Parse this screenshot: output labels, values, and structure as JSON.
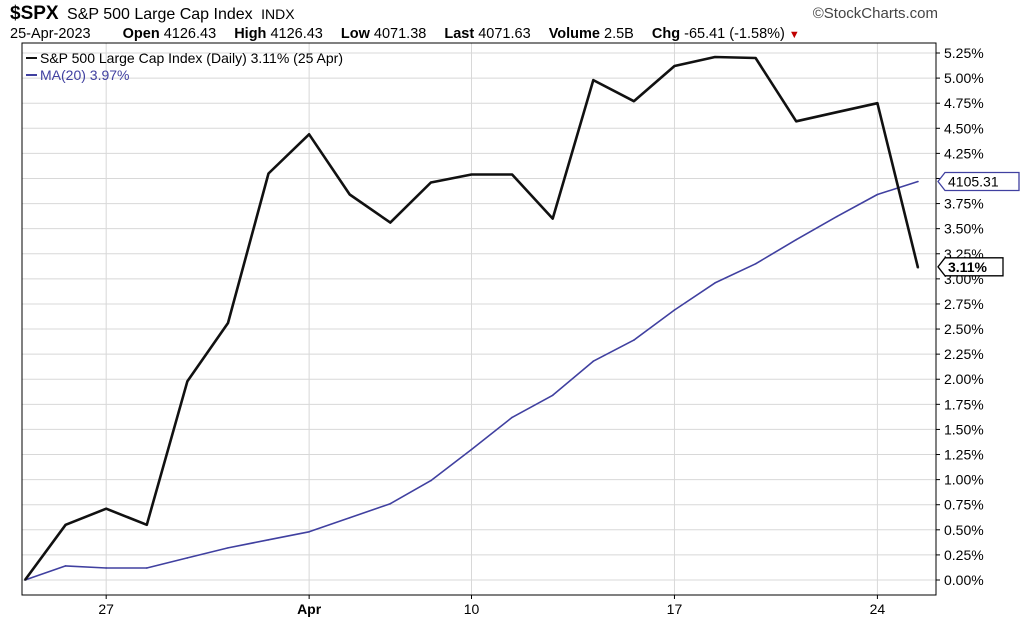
{
  "header": {
    "symbol": "$SPX",
    "name": "S&P 500 Large Cap Index",
    "exchange": "INDX",
    "date": "25-Apr-2023",
    "open_label": "Open",
    "open_value": "4126.43",
    "high_label": "High",
    "high_value": "4126.43",
    "low_label": "Low",
    "low_value": "4071.38",
    "last_label": "Last",
    "last_value": "4071.63",
    "volume_label": "Volume",
    "volume_value": "2.5B",
    "chg_label": "Chg",
    "chg_value": "-65.41 (-1.58%)",
    "brand": "©StockCharts.com"
  },
  "colors": {
    "price_line": "#111111",
    "ma_line": "#4040a0",
    "grid": "#d8d8d8",
    "down": "#c00000"
  },
  "chart_data": {
    "type": "line",
    "x": [
      "Mar 23",
      "Mar 24",
      "Mar 27",
      "Mar 28",
      "Mar 29",
      "Mar 30",
      "Mar 31",
      "Apr 3",
      "Apr 4",
      "Apr 5",
      "Apr 6",
      "Apr 10",
      "Apr 11",
      "Apr 12",
      "Apr 13",
      "Apr 14",
      "Apr 17",
      "Apr 18",
      "Apr 19",
      "Apr 20",
      "Apr 21",
      "Apr 24",
      "Apr 25"
    ],
    "x_ticks": [
      {
        "index": 2,
        "label": "27",
        "bold": false
      },
      {
        "index": 7,
        "label": "Apr",
        "bold": true
      },
      {
        "index": 11,
        "label": "10",
        "bold": false
      },
      {
        "index": 16,
        "label": "17",
        "bold": false
      },
      {
        "index": 21,
        "label": "24",
        "bold": false
      }
    ],
    "series": [
      {
        "name": "S&P 500 Large Cap Index (Daily) 3.11% (25 Apr)",
        "values": [
          0.0,
          0.55,
          0.71,
          0.55,
          1.98,
          2.56,
          4.05,
          4.44,
          3.84,
          3.56,
          3.96,
          4.04,
          4.04,
          3.6,
          4.98,
          4.77,
          5.12,
          5.21,
          5.2,
          4.57,
          4.66,
          4.75,
          3.11
        ]
      },
      {
        "name": "MA(20) 3.97%",
        "values": [
          0.0,
          0.14,
          0.12,
          0.12,
          0.22,
          0.32,
          0.4,
          0.48,
          0.62,
          0.76,
          0.99,
          1.3,
          1.62,
          1.84,
          2.18,
          2.39,
          2.69,
          2.96,
          3.15,
          3.39,
          3.62,
          3.84,
          3.97
        ]
      }
    ],
    "ylim": [
      0,
      5.25
    ],
    "y_ticks": [
      0.0,
      0.25,
      0.5,
      0.75,
      1.0,
      1.25,
      1.5,
      1.75,
      2.0,
      2.25,
      2.5,
      2.75,
      3.0,
      3.25,
      3.5,
      3.75,
      4.0,
      4.25,
      4.5,
      4.75,
      5.0,
      5.25
    ],
    "y_tick_format": "%",
    "axis_side": "right",
    "grid": true,
    "legend_placement": "top-left",
    "price_tag": "3.11%",
    "ma_tag": "4105.31"
  }
}
